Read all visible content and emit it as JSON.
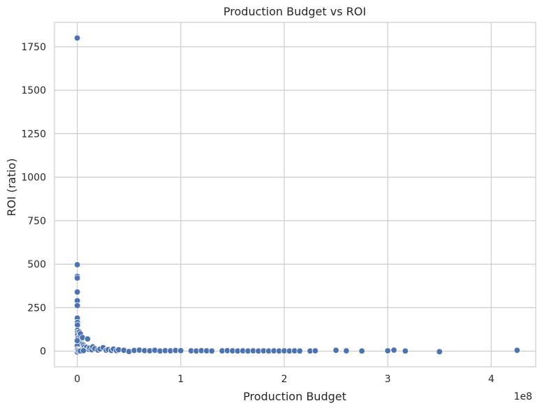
{
  "chart_data": {
    "type": "scatter",
    "title": "Production Budget vs ROI",
    "xlabel": "Production Budget",
    "ylabel": "ROI (ratio)",
    "x_offset_label": "1e8",
    "xlim": [
      -22000000,
      443000000
    ],
    "ylim": [
      -90,
      1890
    ],
    "x_ticks": [
      0,
      100000000,
      200000000,
      300000000,
      400000000
    ],
    "x_tick_labels": [
      "0",
      "1",
      "2",
      "3",
      "4"
    ],
    "y_ticks": [
      0,
      250,
      500,
      750,
      1000,
      1250,
      1500,
      1750
    ],
    "y_tick_labels": [
      "0",
      "250",
      "500",
      "750",
      "1000",
      "1250",
      "1500",
      "1750"
    ],
    "grid": true,
    "point_color": "#4c72b0",
    "points": [
      [
        7000,
        1800
      ],
      [
        10000,
        497
      ],
      [
        15000,
        430
      ],
      [
        20000,
        420
      ],
      [
        30000,
        340
      ],
      [
        50000,
        290
      ],
      [
        60000,
        262
      ],
      [
        100000,
        190
      ],
      [
        150000,
        165
      ],
      [
        200000,
        150
      ],
      [
        250000,
        120
      ],
      [
        300000,
        108
      ],
      [
        500000,
        95
      ],
      [
        700000,
        75
      ],
      [
        800000,
        55
      ],
      [
        1000000,
        45
      ],
      [
        1200000,
        35
      ],
      [
        1500000,
        30
      ],
      [
        2000000,
        110
      ],
      [
        2500000,
        88
      ],
      [
        3000000,
        100
      ],
      [
        3500000,
        60
      ],
      [
        4000000,
        40
      ],
      [
        4500000,
        20
      ],
      [
        5000000,
        78
      ],
      [
        5500000,
        15
      ],
      [
        6000000,
        35
      ],
      [
        7000000,
        25
      ],
      [
        8000000,
        12
      ],
      [
        9000000,
        22
      ],
      [
        10000000,
        70
      ],
      [
        11000000,
        10
      ],
      [
        12000000,
        18
      ],
      [
        14000000,
        8
      ],
      [
        15000000,
        25
      ],
      [
        17000000,
        14
      ],
      [
        20000000,
        6
      ],
      [
        22000000,
        12
      ],
      [
        25000000,
        20
      ],
      [
        28000000,
        5
      ],
      [
        30000000,
        9
      ],
      [
        33000000,
        4
      ],
      [
        35000000,
        12
      ],
      [
        38000000,
        3
      ],
      [
        40000000,
        8
      ],
      [
        45000000,
        5
      ],
      [
        50000000,
        -2
      ],
      [
        55000000,
        4
      ],
      [
        60000000,
        6
      ],
      [
        65000000,
        3
      ],
      [
        70000000,
        2
      ],
      [
        75000000,
        5
      ],
      [
        80000000,
        1
      ],
      [
        85000000,
        3
      ],
      [
        90000000,
        2
      ],
      [
        95000000,
        4
      ],
      [
        100000000,
        3
      ],
      [
        110000000,
        2
      ],
      [
        115000000,
        1
      ],
      [
        120000000,
        3
      ],
      [
        125000000,
        2
      ],
      [
        130000000,
        1
      ],
      [
        140000000,
        2
      ],
      [
        145000000,
        3
      ],
      [
        150000000,
        2
      ],
      [
        155000000,
        1
      ],
      [
        160000000,
        2
      ],
      [
        165000000,
        1
      ],
      [
        170000000,
        2
      ],
      [
        175000000,
        1
      ],
      [
        180000000,
        2
      ],
      [
        185000000,
        1
      ],
      [
        190000000,
        2
      ],
      [
        195000000,
        1
      ],
      [
        200000000,
        2
      ],
      [
        205000000,
        1
      ],
      [
        210000000,
        2
      ],
      [
        215000000,
        1
      ],
      [
        225000000,
        1
      ],
      [
        230000000,
        2
      ],
      [
        250000000,
        5
      ],
      [
        260000000,
        2
      ],
      [
        275000000,
        1
      ],
      [
        300000000,
        2
      ],
      [
        306000000,
        6
      ],
      [
        317000000,
        1
      ],
      [
        350000000,
        -3
      ],
      [
        425000000,
        5
      ],
      [
        0,
        0
      ],
      [
        0,
        30
      ],
      [
        0,
        60
      ],
      [
        0,
        10
      ],
      [
        0,
        -5
      ],
      [
        500000,
        5
      ],
      [
        1500000,
        2
      ],
      [
        3000000,
        1
      ],
      [
        6000000,
        3
      ]
    ]
  }
}
